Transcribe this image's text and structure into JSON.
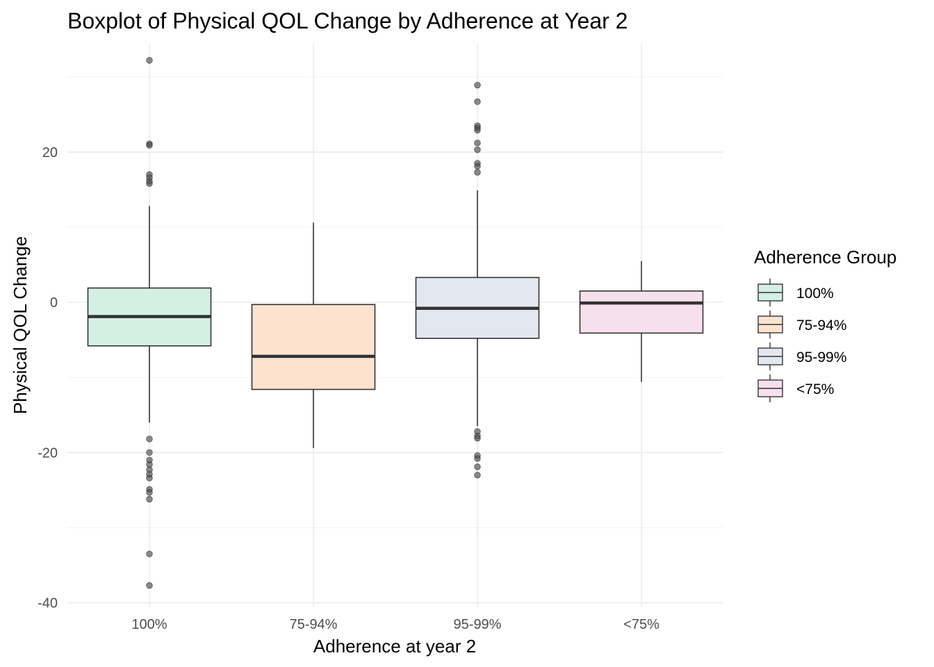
{
  "chart_data": {
    "type": "boxplot",
    "title": "Boxplot of Physical QOL Change by Adherence at Year 2",
    "xlabel": "Adherence at year 2",
    "ylabel": "Physical QOL Change",
    "ylim": [
      -40.5,
      34.5
    ],
    "y_ticks": [
      -40,
      -20,
      0,
      20
    ],
    "y_tick_labels": [
      "-40",
      "-20",
      "0",
      "20"
    ],
    "grid": true,
    "legend": {
      "title": "Adherence Group",
      "position": "right"
    },
    "categories": [
      "100%",
      "75-94%",
      "95-99%",
      "<75%"
    ],
    "boxes": [
      {
        "name": "100%",
        "color": "#d4efe4",
        "whisker_low": -16,
        "q1": -5.8,
        "median": -1.9,
        "q3": 1.9,
        "whisker_high": 12.8,
        "outliers": [
          32.2,
          21.1,
          20.9,
          17.0,
          16.6,
          16.1,
          15.8,
          -18.2,
          -20.0,
          -21.0,
          -21.6,
          -22.3,
          -22.9,
          -23.4,
          -24.9,
          -25.3,
          -26.2,
          -33.5,
          -37.7
        ]
      },
      {
        "name": "75-94%",
        "color": "#fde3cf",
        "whisker_low": -19.4,
        "q1": -11.6,
        "median": -7.2,
        "q3": -0.3,
        "whisker_high": 10.6,
        "outliers": []
      },
      {
        "name": "95-99%",
        "color": "#e3e8f0",
        "whisker_low": -16.5,
        "q1": -4.8,
        "median": -0.8,
        "q3": 3.3,
        "whisker_high": 14.9,
        "outliers": [
          28.9,
          26.7,
          23.5,
          23.2,
          22.9,
          21.2,
          20.3,
          18.5,
          18.1,
          17.3,
          -17.2,
          -17.8,
          -18.1,
          -20.4,
          -20.8,
          -21.9,
          -23.0
        ]
      },
      {
        "name": "<75%",
        "color": "#f6e0ee",
        "whisker_low": -10.6,
        "q1": -4.1,
        "median": -0.1,
        "q3": 1.5,
        "whisker_high": 5.5,
        "outliers": []
      }
    ]
  }
}
